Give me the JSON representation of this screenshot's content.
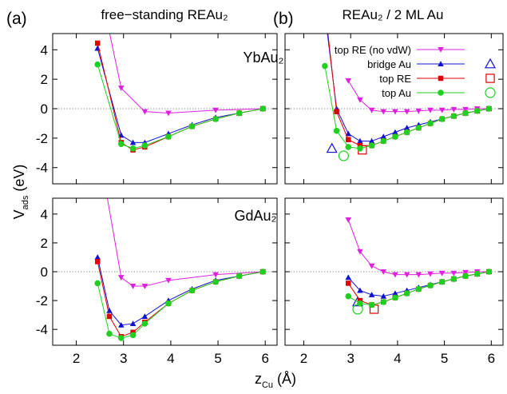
{
  "header": {
    "a": "(a)",
    "b": "(b)",
    "title_a": "free−standing REAu₂",
    "title_b": "REAu₂ / 2 ML Au",
    "label_top": "YbAu₂",
    "label_bottom": "GdAu₂",
    "y_label": {
      "main": "V",
      "sub": "ads",
      "rest": " (eV)"
    },
    "x_label": {
      "main": "z",
      "sub": "Cu",
      "rest": " (Å)"
    }
  },
  "chart_data": [
    {
      "type": "line",
      "xlim": [
        1.5,
        6.25
      ],
      "ylim": [
        -5.1,
        5.1
      ],
      "xticks": [
        2,
        3,
        4,
        5,
        6
      ],
      "yticks": [
        -4,
        -2,
        0,
        2,
        4
      ],
      "hline": 0,
      "xtick_labels": false,
      "ytick_labels": true,
      "series": [
        {
          "color": "#e020e0",
          "marker": "tri-down",
          "x": [
            2.45,
            2.95,
            3.45,
            3.95,
            4.95,
            5.95
          ],
          "values": [
            9,
            1.4,
            -0.2,
            -0.3,
            -0.1,
            0
          ]
        },
        {
          "color": "#1010d0",
          "marker": "tri-up",
          "x": [
            2.45,
            2.95,
            3.2,
            3.45,
            3.95,
            4.45,
            4.95,
            5.45,
            5.95
          ],
          "values": [
            4.1,
            -1.8,
            -2.3,
            -2.3,
            -1.7,
            -1.1,
            -0.6,
            -0.3,
            0
          ]
        },
        {
          "color": "#e00000",
          "marker": "square",
          "x": [
            2.45,
            2.95,
            3.2,
            3.45,
            3.95,
            4.45,
            4.95,
            5.45,
            5.95
          ],
          "values": [
            4.45,
            -2.3,
            -2.8,
            -2.6,
            -1.9,
            -1.2,
            -0.7,
            -0.3,
            0
          ]
        },
        {
          "color": "#20d020",
          "marker": "circle",
          "x": [
            2.45,
            2.95,
            3.2,
            3.45,
            3.95,
            4.45,
            4.95,
            5.45,
            5.95
          ],
          "values": [
            3.0,
            -2.4,
            -2.7,
            -2.5,
            -1.9,
            -1.2,
            -0.7,
            -0.3,
            0
          ]
        }
      ]
    },
    {
      "type": "line",
      "xlim": [
        1.6,
        6.25
      ],
      "ylim": [
        -5.1,
        5.1
      ],
      "xticks": [
        2,
        3,
        4,
        5,
        6
      ],
      "yticks": [
        -4,
        -2,
        0,
        2,
        4
      ],
      "hline": 0,
      "xtick_labels": false,
      "ytick_labels": false,
      "series": [
        {
          "name": "top RE (no vdW)",
          "color": "#e020e0",
          "marker": "tri-down",
          "x": [
            2.95,
            3.2,
            3.45,
            3.7,
            3.95,
            4.2,
            4.45,
            4.7,
            4.95,
            5.2,
            5.45,
            5.7,
            5.95
          ],
          "values": [
            1.9,
            0.6,
            -0.1,
            -0.2,
            -0.2,
            -0.2,
            -0.15,
            -0.1,
            -0.1,
            -0.05,
            -0.05,
            0,
            0
          ]
        },
        {
          "name": "bridge Au",
          "color": "#1010d0",
          "marker": "tri-up",
          "x": [
            2.45,
            2.7,
            2.95,
            3.2,
            3.45,
            3.7,
            3.95,
            4.2,
            4.45,
            4.7,
            4.95,
            5.2,
            5.45,
            5.7,
            5.95
          ],
          "values": [
            6.5,
            0.0,
            -1.7,
            -2.2,
            -2.2,
            -1.9,
            -1.6,
            -1.3,
            -1.1,
            -0.9,
            -0.7,
            -0.5,
            -0.3,
            -0.15,
            0
          ],
          "ref": {
            "x": 2.6,
            "y": -2.7
          }
        },
        {
          "name": "top RE",
          "color": "#e00000",
          "marker": "square",
          "x": [
            2.45,
            2.7,
            2.95,
            3.2,
            3.45,
            3.7,
            3.95,
            4.2,
            4.45,
            4.7,
            4.95,
            5.2,
            5.45,
            5.7,
            5.95
          ],
          "values": [
            7,
            -0.2,
            -2.1,
            -2.5,
            -2.5,
            -2.2,
            -1.9,
            -1.6,
            -1.3,
            -1.0,
            -0.7,
            -0.5,
            -0.3,
            -0.15,
            0
          ],
          "ref": {
            "x": 3.25,
            "y": -2.8
          }
        },
        {
          "name": "top Au",
          "color": "#20d020",
          "marker": "circle",
          "x": [
            2.45,
            2.7,
            2.95,
            3.2,
            3.45,
            3.7,
            3.95,
            4.2,
            4.45,
            4.7,
            4.95,
            5.2,
            5.45,
            5.7,
            5.95
          ],
          "values": [
            2.9,
            -1.5,
            -2.6,
            -2.7,
            -2.5,
            -2.2,
            -1.9,
            -1.6,
            -1.3,
            -1.0,
            -0.7,
            -0.5,
            -0.3,
            -0.15,
            0
          ],
          "ref": {
            "x": 2.85,
            "y": -3.2
          }
        }
      ]
    },
    {
      "type": "line",
      "xlim": [
        1.5,
        6.25
      ],
      "ylim": [
        -5.1,
        5.1
      ],
      "xticks": [
        2,
        3,
        4,
        5,
        6
      ],
      "yticks": [
        -4,
        -2,
        0,
        2,
        4
      ],
      "hline": 0,
      "xtick_labels": true,
      "ytick_labels": true,
      "series": [
        {
          "color": "#e020e0",
          "marker": "tri-down",
          "x": [
            2.45,
            2.95,
            3.2,
            3.45,
            3.95,
            4.95,
            5.95
          ],
          "values": [
            9,
            -0.4,
            -1.0,
            -1.0,
            -0.6,
            -0.2,
            0
          ]
        },
        {
          "color": "#1010d0",
          "marker": "tri-up",
          "x": [
            2.45,
            2.7,
            2.95,
            3.2,
            3.45,
            3.95,
            4.45,
            4.95,
            5.45,
            5.95
          ],
          "values": [
            1.0,
            -2.7,
            -3.7,
            -3.6,
            -3.1,
            -2.0,
            -1.2,
            -0.6,
            -0.3,
            0
          ]
        },
        {
          "color": "#e00000",
          "marker": "square",
          "x": [
            2.45,
            2.7,
            2.95,
            3.2,
            3.45,
            3.95,
            4.45,
            4.95,
            5.45,
            5.95
          ],
          "values": [
            0.7,
            -3.1,
            -4.5,
            -4.2,
            -3.5,
            -2.2,
            -1.3,
            -0.7,
            -0.3,
            0
          ]
        },
        {
          "color": "#20d020",
          "marker": "circle",
          "x": [
            2.45,
            2.7,
            2.95,
            3.2,
            3.45,
            3.95,
            4.45,
            4.95,
            5.45,
            5.95
          ],
          "values": [
            -0.8,
            -4.3,
            -4.6,
            -4.4,
            -3.6,
            -2.2,
            -1.3,
            -0.7,
            -0.3,
            0
          ]
        }
      ]
    },
    {
      "type": "line",
      "xlim": [
        1.6,
        6.25
      ],
      "ylim": [
        -5.1,
        5.1
      ],
      "xticks": [
        2,
        3,
        4,
        5,
        6
      ],
      "yticks": [
        -4,
        -2,
        0,
        2,
        4
      ],
      "hline": 0,
      "xtick_labels": true,
      "ytick_labels": false,
      "series": [
        {
          "color": "#e020e0",
          "marker": "tri-down",
          "x": [
            2.95,
            3.2,
            3.45,
            3.7,
            3.95,
            4.2,
            4.45,
            4.7,
            4.95,
            5.2,
            5.45,
            5.7,
            5.95
          ],
          "values": [
            3.6,
            1.4,
            0.4,
            0.0,
            -0.2,
            -0.2,
            -0.2,
            -0.15,
            -0.1,
            -0.1,
            -0.05,
            0,
            0
          ]
        },
        {
          "color": "#1010d0",
          "marker": "tri-up",
          "x": [
            2.95,
            3.2,
            3.45,
            3.7,
            3.95,
            4.2,
            4.45,
            4.7,
            4.95,
            5.2,
            5.45,
            5.7,
            5.95
          ],
          "values": [
            -0.4,
            -1.3,
            -1.6,
            -1.7,
            -1.5,
            -1.3,
            -1.1,
            -0.9,
            -0.7,
            -0.5,
            -0.3,
            -0.15,
            0
          ],
          "ref": {
            "x": 3.15,
            "y": -2.1
          }
        },
        {
          "color": "#e00000",
          "marker": "square",
          "x": [
            2.95,
            3.2,
            3.45,
            3.7,
            3.95,
            4.2,
            4.45,
            4.7,
            4.95,
            5.2,
            5.45,
            5.7,
            5.95
          ],
          "values": [
            -0.8,
            -2.0,
            -2.3,
            -2.1,
            -1.8,
            -1.5,
            -1.2,
            -0.95,
            -0.7,
            -0.5,
            -0.3,
            -0.15,
            0
          ],
          "ref": {
            "x": 3.5,
            "y": -2.6
          }
        },
        {
          "color": "#20d020",
          "marker": "circle",
          "x": [
            2.95,
            3.2,
            3.45,
            3.7,
            3.95,
            4.2,
            4.45,
            4.7,
            4.95,
            5.2,
            5.45,
            5.7,
            5.95
          ],
          "values": [
            -1.7,
            -2.2,
            -2.3,
            -2.1,
            -1.8,
            -1.5,
            -1.2,
            -0.95,
            -0.7,
            -0.5,
            -0.3,
            -0.15,
            0
          ],
          "ref": {
            "x": 3.15,
            "y": -2.6
          }
        }
      ]
    }
  ]
}
